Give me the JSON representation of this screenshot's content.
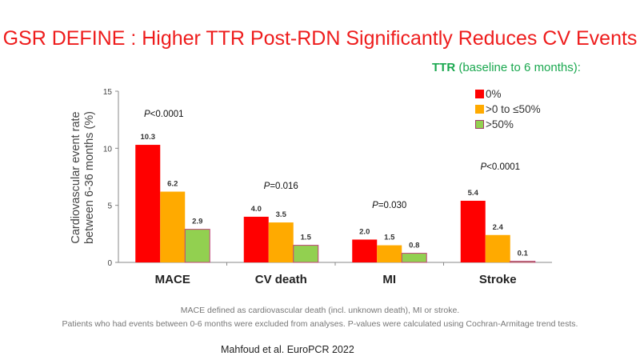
{
  "title": "GSR  DEFINE : Higher TTR Post-RDN Significantly Reduces CV Events",
  "legend_title_bold": "TTR",
  "legend_title_rest": " (baseline to 6 months):",
  "chart_data": {
    "type": "bar",
    "categories": [
      "MACE",
      "CV death",
      "MI",
      "Stroke"
    ],
    "series": [
      {
        "name": "0%",
        "color": "#ff0000",
        "values": [
          10.3,
          4.0,
          2.0,
          5.4
        ]
      },
      {
        "name": ">0 to ≤50%",
        "color": "#ffaa00",
        "values": [
          6.2,
          3.5,
          1.5,
          2.4
        ]
      },
      {
        "name": ">50%",
        "color": "#92d050",
        "values": [
          2.9,
          1.5,
          0.8,
          0.1
        ]
      }
    ],
    "value_labels": [
      [
        "10.3",
        "4.0",
        "2.0",
        "5.4"
      ],
      [
        "6.2",
        "3.5",
        "1.5",
        "2.4"
      ],
      [
        "2.9",
        "1.5",
        "0.8",
        "0.1"
      ]
    ],
    "p_values": [
      "<0.0001",
      "=0.016",
      "=0.030",
      "<0.0001"
    ],
    "p_letter": "P",
    "ylabel_line1": "Cardiovascular event rate",
    "ylabel_line2": "between 6-36 months (%)",
    "yticks": [
      0,
      5,
      10,
      15
    ],
    "ylim": [
      0,
      15
    ],
    "grid": false,
    "legend_position": "top-right"
  },
  "footnote1": "MACE defined as cardiovascular death (incl. unknown death), MI or stroke.",
  "footnote2": "Patients who had events between 0-6 months were excluded from analyses.  P-values were calculated using Cochran-Armitage trend tests.",
  "citation": "Mahfoud et al. EuroPCR 2022"
}
